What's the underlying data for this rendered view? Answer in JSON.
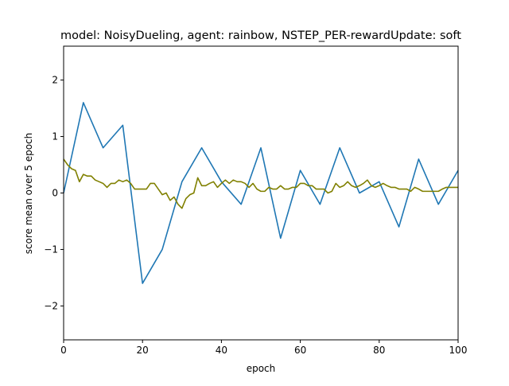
{
  "chart_data": {
    "type": "line",
    "title": "model: NoisyDueling, agent: rainbow, NSTEP_PER-rewardUpdate: soft",
    "xlabel": "epoch",
    "ylabel": "score mean over 5 epoch",
    "xlim": [
      0,
      100
    ],
    "ylim": [
      -2.6,
      2.6
    ],
    "xticks": [
      0,
      20,
      40,
      60,
      80,
      100
    ],
    "xtick_labels": [
      "0",
      "20",
      "40",
      "60",
      "80",
      "100"
    ],
    "yticks": [
      -2,
      -1,
      0,
      1,
      2
    ],
    "ytick_labels": [
      "−2",
      "−1",
      "0",
      "1",
      "2"
    ],
    "grid": false,
    "legend": "none",
    "series": [
      {
        "color": "#1f77b4",
        "x": [
          0,
          5,
          10,
          15,
          20,
          25,
          30,
          35,
          40,
          45,
          50,
          55,
          60,
          65,
          70,
          75,
          80,
          85,
          90,
          95,
          100
        ],
        "y": [
          0.0,
          1.6,
          0.8,
          1.2,
          -1.6,
          -1.0,
          0.2,
          0.8,
          0.2,
          -0.2,
          0.8,
          -0.8,
          0.4,
          -0.2,
          0.8,
          0.0,
          0.2,
          -0.6,
          0.6,
          -0.2,
          0.4
        ]
      },
      {
        "color": "#808000",
        "x": [
          0,
          1,
          2,
          3,
          4,
          5,
          6,
          7,
          8,
          9,
          10,
          11,
          12,
          13,
          14,
          15,
          16,
          17,
          18,
          19,
          20,
          21,
          22,
          23,
          24,
          25,
          26,
          27,
          28,
          29,
          30,
          31,
          32,
          33,
          34,
          35,
          36,
          37,
          38,
          39,
          40,
          41,
          42,
          43,
          44,
          45,
          46,
          47,
          48,
          49,
          50,
          51,
          52,
          53,
          54,
          55,
          56,
          57,
          58,
          59,
          60,
          61,
          62,
          63,
          64,
          65,
          66,
          67,
          68,
          69,
          70,
          71,
          72,
          73,
          74,
          75,
          76,
          77,
          78,
          79,
          80,
          81,
          82,
          83,
          84,
          85,
          86,
          87,
          88,
          89,
          90,
          91,
          92,
          93,
          94,
          95,
          96,
          97,
          98,
          99,
          100
        ],
        "y": [
          0.6,
          0.5,
          0.43,
          0.4,
          0.2,
          0.33,
          0.3,
          0.3,
          0.23,
          0.2,
          0.17,
          0.1,
          0.17,
          0.17,
          0.23,
          0.2,
          0.23,
          0.17,
          0.07,
          0.07,
          0.07,
          0.07,
          0.17,
          0.17,
          0.07,
          -0.03,
          0.0,
          -0.13,
          -0.07,
          -0.2,
          -0.27,
          -0.1,
          -0.03,
          0.0,
          0.27,
          0.13,
          0.13,
          0.17,
          0.2,
          0.1,
          0.17,
          0.23,
          0.17,
          0.23,
          0.2,
          0.2,
          0.17,
          0.1,
          0.17,
          0.07,
          0.03,
          0.03,
          0.1,
          0.07,
          0.07,
          0.13,
          0.07,
          0.07,
          0.1,
          0.1,
          0.17,
          0.17,
          0.13,
          0.13,
          0.07,
          0.07,
          0.07,
          0.0,
          0.03,
          0.17,
          0.1,
          0.13,
          0.2,
          0.13,
          0.1,
          0.13,
          0.17,
          0.23,
          0.13,
          0.1,
          0.13,
          0.17,
          0.13,
          0.1,
          0.1,
          0.07,
          0.07,
          0.07,
          0.03,
          0.1,
          0.07,
          0.03,
          0.03,
          0.03,
          0.03,
          0.03,
          0.07,
          0.1,
          0.1,
          0.1,
          0.1
        ]
      }
    ]
  }
}
